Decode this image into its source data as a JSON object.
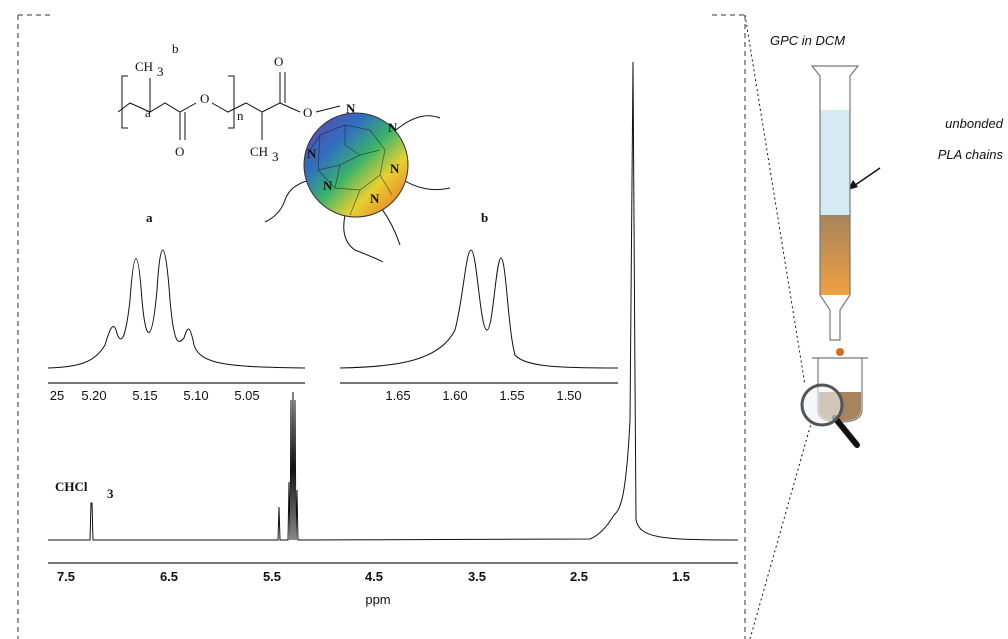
{
  "structure": {
    "label_b": "b",
    "label_a": "a",
    "ch3_top": {
      "main": "CH",
      "sub": "3"
    },
    "ch3_bottom": {
      "main": "CH",
      "sub": "3"
    },
    "oxygens": [
      "O",
      "O",
      "O",
      "O"
    ],
    "repeat": "n",
    "nitrogens": [
      "N",
      "N",
      "N",
      "N",
      "N",
      "N"
    ]
  },
  "inset_a": {
    "label": "a",
    "ticks": [
      "25",
      "5.20",
      "5.15",
      "5.10",
      "5.05"
    ]
  },
  "inset_b": {
    "label": "b",
    "ticks": [
      "1.65",
      "1.60",
      "1.55",
      "1.50"
    ]
  },
  "main_spectrum": {
    "annotation": {
      "main": "CHCl",
      "sub": "3"
    },
    "ticks": [
      "7.5",
      "6.5",
      "5.5",
      "4.5",
      "3.5",
      "2.5",
      "1.5"
    ],
    "xlabel": "ppm"
  },
  "gpc": {
    "title": "GPC in DCM",
    "note": [
      "unbonded",
      "PLA chains"
    ]
  }
}
